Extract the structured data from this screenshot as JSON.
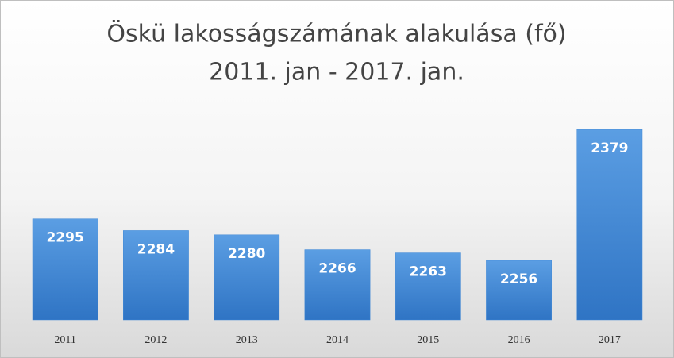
{
  "chart_data": {
    "type": "bar",
    "title": "Öskü lakosságszámának alakulása (fő)",
    "subtitle": "2011. jan - 2017. jan.",
    "categories": [
      "2011",
      "2012",
      "2013",
      "2014",
      "2015",
      "2016",
      "2017"
    ],
    "values": [
      2295,
      2284,
      2280,
      2266,
      2263,
      2256,
      2379
    ],
    "color": "#3f87d6",
    "ylim": [
      2200,
      2400
    ]
  }
}
